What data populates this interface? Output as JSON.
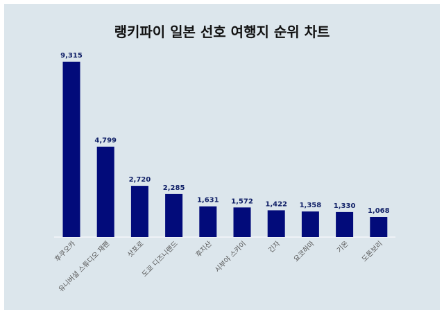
{
  "chart_data": {
    "type": "bar",
    "title": "랭키파이 일본 선호 여행지 순위 차트",
    "categories": [
      "후쿠오카",
      "유니버셜 스튜디오 재팬",
      "삿포로",
      "도쿄 디즈니랜드",
      "후지산",
      "시부야 스카이",
      "긴자",
      "요코하마",
      "기온",
      "도톤보리"
    ],
    "values": [
      9315,
      4799,
      2720,
      2285,
      1631,
      1572,
      1422,
      1358,
      1330,
      1068
    ],
    "value_labels": [
      "9,315",
      "4,799",
      "2,720",
      "2,285",
      "1,631",
      "1,572",
      "1,422",
      "1,358",
      "1,330",
      "1,068"
    ],
    "bar_color": "#020b7a",
    "background_color": "#dce6ec",
    "grid": false,
    "legend": false
  }
}
